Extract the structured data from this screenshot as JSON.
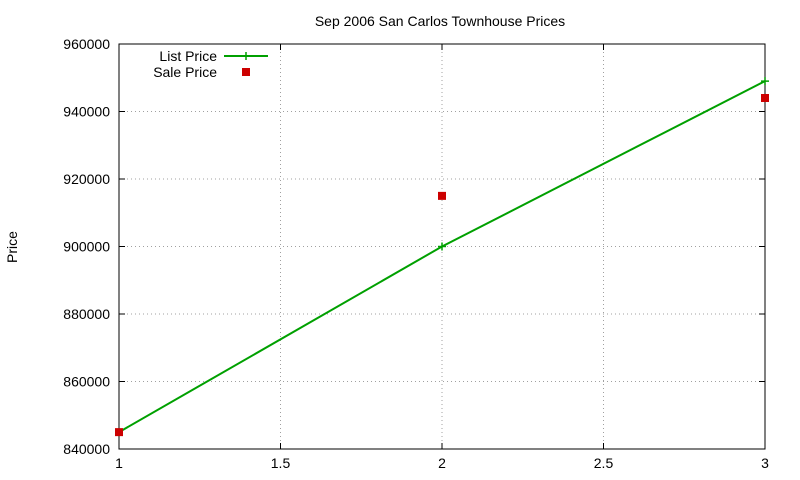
{
  "chart_data": {
    "type": "line",
    "title": "Sep 2006 San Carlos Townhouse Prices",
    "xlabel": "",
    "ylabel": "Price",
    "xlim": [
      1,
      3
    ],
    "ylim": [
      840000,
      960000
    ],
    "xticks": [
      1,
      1.5,
      2,
      2.5,
      3
    ],
    "xtick_labels": [
      "1",
      "1.5",
      "2",
      "2.5",
      "3"
    ],
    "yticks": [
      840000,
      860000,
      880000,
      900000,
      920000,
      940000,
      960000
    ],
    "ytick_labels": [
      "840000",
      "860000",
      "880000",
      "900000",
      "920000",
      "940000",
      "960000"
    ],
    "grid": true,
    "legend_position": "top-left",
    "series": [
      {
        "name": "List Price",
        "kind": "linespoints",
        "color": "#00a000",
        "marker": "plus",
        "x": [
          1,
          2,
          3
        ],
        "y": [
          845000,
          900000,
          949000
        ]
      },
      {
        "name": "Sale Price",
        "kind": "points",
        "color": "#cc0000",
        "marker": "square",
        "x": [
          1,
          2,
          3
        ],
        "y": [
          845000,
          915000,
          944000
        ]
      }
    ]
  }
}
